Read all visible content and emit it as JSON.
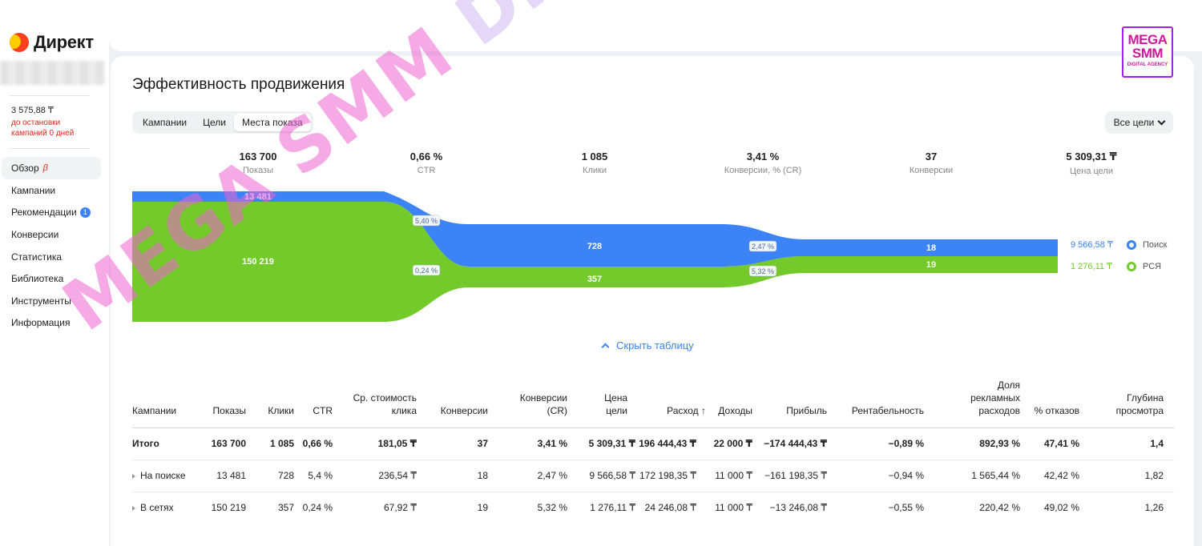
{
  "sidebar": {
    "logo": "Директ",
    "balance": "3 575,88 ₸",
    "balance_warning": "до остановки кампаний 0 дней",
    "items": [
      {
        "label": "Обзор",
        "beta": "β"
      },
      {
        "label": "Кампании"
      },
      {
        "label": "Рекомендации",
        "badge": "1"
      },
      {
        "label": "Конверсии"
      },
      {
        "label": "Статистика"
      },
      {
        "label": "Библиотека"
      },
      {
        "label": "Инструменты"
      },
      {
        "label": "Информация"
      }
    ]
  },
  "main": {
    "title": "Эффективность продвижения",
    "tabs": [
      "Кампании",
      "Цели",
      "Места показа"
    ],
    "goals_select": "Все цели",
    "toggle_table": "Скрыть таблицу"
  },
  "metrics": [
    {
      "value": "163 700",
      "label": "Показы"
    },
    {
      "value": "0,66 %",
      "label": "CTR"
    },
    {
      "value": "1 085",
      "label": "Клики"
    },
    {
      "value": "3,41 %",
      "label": "Конверсии, % (CR)"
    },
    {
      "value": "37",
      "label": "Конверсии"
    },
    {
      "value": "5 309,31 ₸",
      "label": "Цена цели"
    }
  ],
  "funnel": {
    "search_impressions": "13 481",
    "rsya_impressions": "150 219",
    "search_ctr": "5,40 %",
    "rsya_ctr": "0,24 %",
    "search_clicks": "728",
    "rsya_clicks": "357",
    "search_cr": "2,47 %",
    "rsya_cr": "5,32 %",
    "search_conv": "18",
    "rsya_conv": "19",
    "colors": {
      "search": "#3b83f7",
      "rsya": "#73ca2a"
    }
  },
  "legend": [
    {
      "value": "9 566,58 ₸",
      "name": "Поиск",
      "color": "#3b83f7"
    },
    {
      "value": "1 276,11 ₸",
      "name": "РСЯ",
      "color": "#73ca2a"
    }
  ],
  "table": {
    "headers": [
      "Кампании",
      "Показы",
      "Клики",
      "CTR",
      "Ср. стоимость клика",
      "Конверсии",
      "Конверсии (CR)",
      "Цена цели",
      "Расход ↑",
      "Доходы",
      "Прибыль",
      "Рентабельность",
      "Доля рекламных расходов",
      "% отказов",
      "Глубина просмотра"
    ],
    "rows": [
      [
        "Итого",
        "163 700",
        "1 085",
        "0,66 %",
        "181,05 ₸",
        "37",
        "3,41 %",
        "5 309,31 ₸",
        "196 444,43 ₸",
        "22 000 ₸",
        "−174 444,43 ₸",
        "−0,89 %",
        "892,93 %",
        "47,41 %",
        "1,4"
      ],
      [
        "На поиске",
        "13 481",
        "728",
        "5,4 %",
        "236,54 ₸",
        "18",
        "2,47 %",
        "9 566,58 ₸",
        "172 198,35 ₸",
        "11 000 ₸",
        "−161 198,35 ₸",
        "−0,94 %",
        "1 565,44 %",
        "42,42 %",
        "1,82"
      ],
      [
        "В сетях",
        "150 219",
        "357",
        "0,24 %",
        "67,92 ₸",
        "19",
        "5,32 %",
        "1 276,11 ₸",
        "24 246,08 ₸",
        "11 000 ₸",
        "−13 246,08 ₸",
        "−0,55 %",
        "220,42 %",
        "49,02 %",
        "1,26"
      ]
    ]
  },
  "watermark": {
    "part1": "MEGA SMM",
    "part2": " DIGITAL AGENCY"
  },
  "brand": {
    "line1": "MEGA",
    "line2": "SMM",
    "line3": "DIGITAL AGENCY"
  }
}
